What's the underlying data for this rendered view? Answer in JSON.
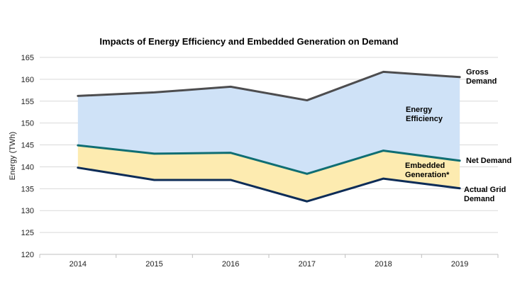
{
  "chart_data": {
    "type": "area",
    "title": "Impacts of Energy Efficiency and Embedded Generation on Demand",
    "xlabel": "",
    "ylabel": "Energy (TWh)",
    "ylim": [
      120,
      165
    ],
    "yticks": [
      120,
      125,
      130,
      135,
      140,
      145,
      150,
      155,
      160,
      165
    ],
    "categories": [
      "2014",
      "2015",
      "2016",
      "2017",
      "2018",
      "2019"
    ],
    "grid": true,
    "series": [
      {
        "name": "Gross Demand",
        "values": [
          156.2,
          157.0,
          158.3,
          155.2,
          161.7,
          160.5
        ],
        "color": "#4d4d4f"
      },
      {
        "name": "Net Demand",
        "values": [
          144.9,
          143.0,
          143.2,
          138.4,
          143.7,
          141.4
        ],
        "color": "#0f6e73"
      },
      {
        "name": "Actual Grid Demand",
        "values": [
          139.8,
          137.0,
          137.0,
          132.1,
          137.3,
          135.1
        ],
        "color": "#0d2c57"
      }
    ],
    "bands": [
      {
        "name": "Energy Efficiency",
        "upper": "Gross Demand",
        "lower": "Net Demand",
        "color": "#cfe2f7"
      },
      {
        "name": "Embedded Generation*",
        "upper": "Net Demand",
        "lower": "Actual Grid Demand",
        "color": "#fdebb0"
      }
    ],
    "annotations": {
      "gross": [
        "Gross",
        "Demand"
      ],
      "net": [
        "Net Demand"
      ],
      "actual": [
        "Actual Grid",
        "Demand"
      ],
      "efficiency": [
        "Energy",
        "Efficiency"
      ],
      "embedded": [
        "Embedded",
        "Generation*"
      ]
    }
  }
}
